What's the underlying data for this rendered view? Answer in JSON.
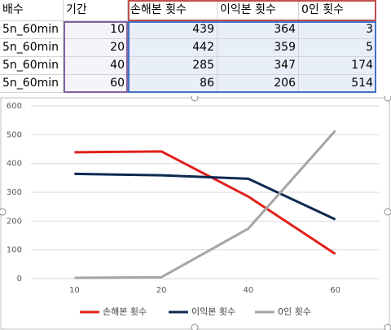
{
  "table": {
    "header": [
      "배수",
      "기간",
      "손해본 횟수",
      "이익본 횟수",
      "0인 횟수"
    ],
    "rows": [
      [
        "5n_60min",
        10,
        439,
        364,
        3
      ],
      [
        "5n_60min",
        20,
        442,
        359,
        5
      ],
      [
        "5n_60min",
        40,
        285,
        347,
        174
      ],
      [
        "5n_60min",
        60,
        86,
        206,
        514
      ]
    ]
  },
  "chart_data": {
    "type": "line",
    "categories": [
      "10",
      "20",
      "40",
      "60"
    ],
    "series": [
      {
        "name": "손해본 횟수",
        "color": "#e0201b",
        "values": [
          439,
          442,
          285,
          86
        ]
      },
      {
        "name": "이익본 횟수",
        "color": "#0e2a52",
        "values": [
          364,
          359,
          347,
          206
        ]
      },
      {
        "name": "0인 횟수",
        "color": "#a5a5a5",
        "values": [
          3,
          5,
          174,
          514
        ]
      }
    ],
    "ylim": [
      0,
      600
    ],
    "yticks": [
      0,
      100,
      200,
      300,
      400,
      500,
      600
    ],
    "grid": true,
    "legend": "bottom"
  }
}
